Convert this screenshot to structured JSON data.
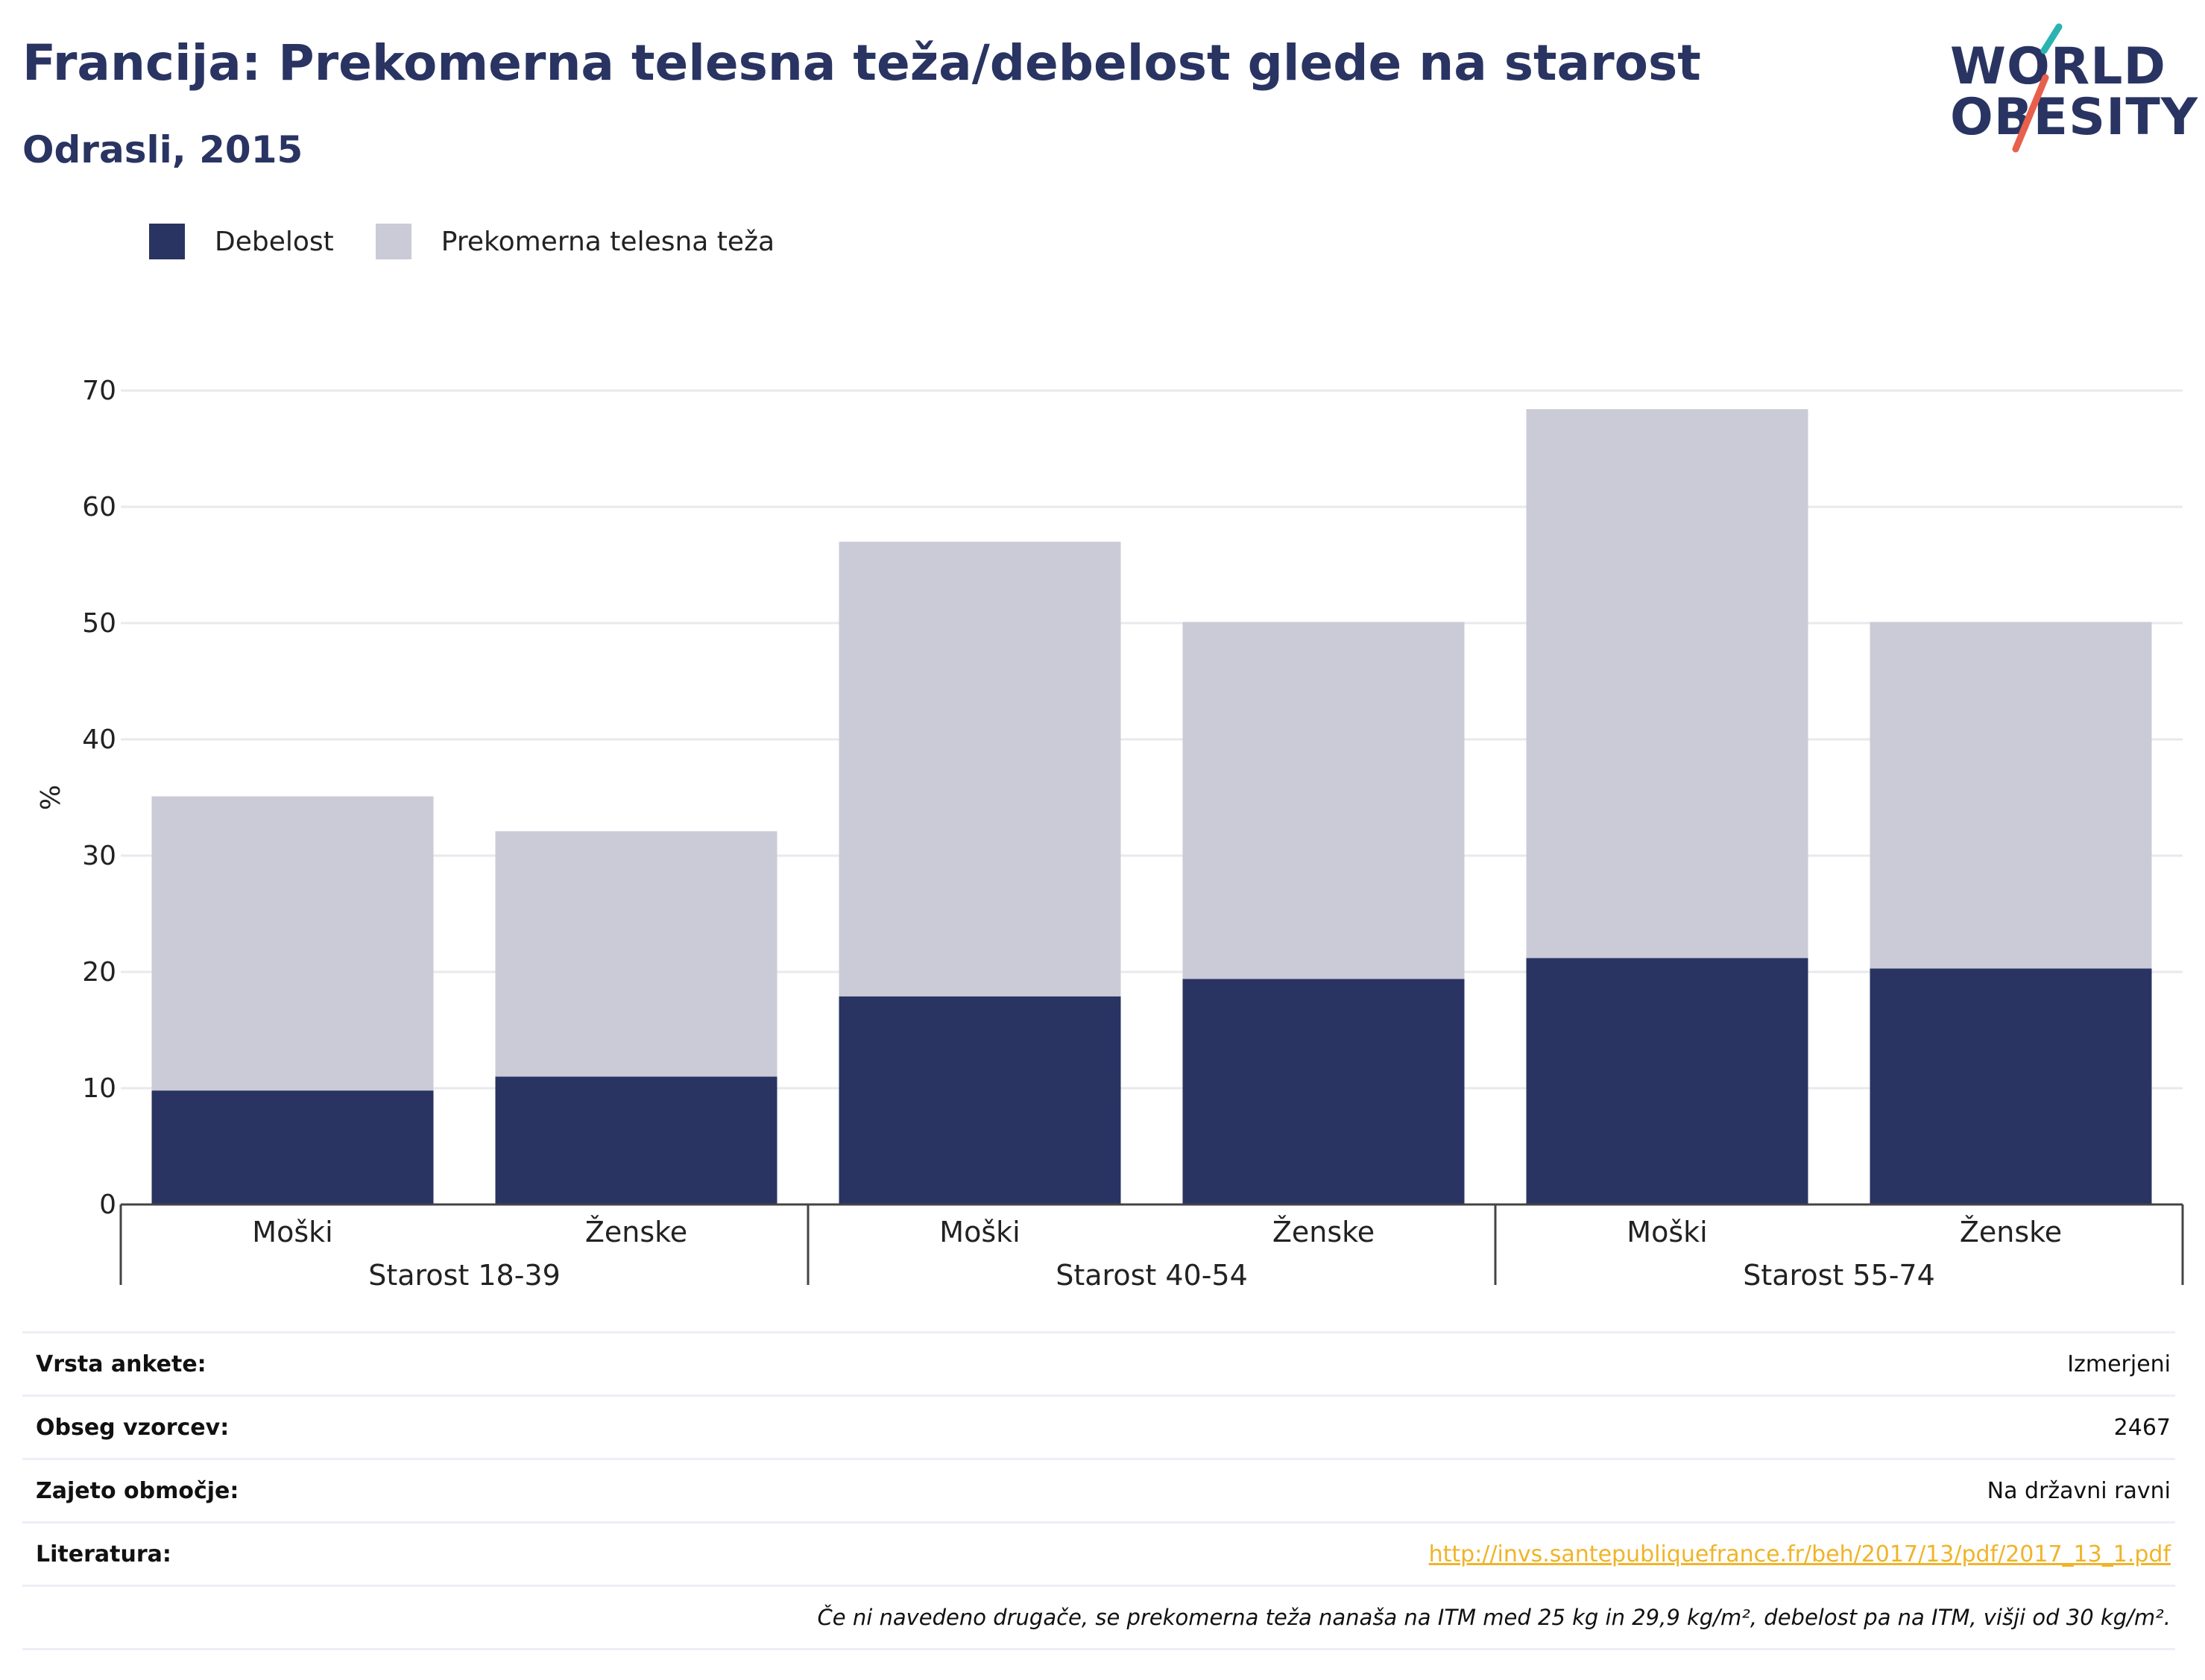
{
  "header": {
    "title": "Francija: Prekomerna telesna teža/debelost glede na starost",
    "subtitle": "Odrasli, 2015"
  },
  "logo": {
    "line1": "WORLD",
    "line2": "OBESITY",
    "accent_teal": "#2bb3b1",
    "accent_red": "#e8604c"
  },
  "colors": {
    "obesity": "#293462",
    "overweight": "#cacbd7",
    "grid": "#e8e9ee",
    "axis": "#444444"
  },
  "legend": {
    "items": [
      {
        "label": "Debelost",
        "color": "#293462"
      },
      {
        "label": "Prekomerna telesna teža",
        "color": "#cacbd7"
      }
    ]
  },
  "chart_data": {
    "type": "bar",
    "stacked": true,
    "ylabel": "%",
    "ylim": [
      0,
      70
    ],
    "yticks": [
      0,
      10,
      20,
      30,
      40,
      50,
      60,
      70
    ],
    "grid": true,
    "legend_position": "top-left",
    "groups": [
      "Starost 18-39",
      "Starost 40-54",
      "Starost 55-74"
    ],
    "categories": [
      "Moški",
      "Ženske",
      "Moški",
      "Ženske",
      "Moški",
      "Ženske"
    ],
    "series": [
      {
        "name": "Debelost",
        "values": [
          9.8,
          11.0,
          17.9,
          19.4,
          21.2,
          20.3
        ]
      },
      {
        "name": "Prekomerna telesna teža",
        "values": [
          25.3,
          21.1,
          39.1,
          30.7,
          47.2,
          29.8
        ]
      }
    ]
  },
  "info": {
    "rows": [
      {
        "key": "Vrsta ankete:",
        "value": "Izmerjeni"
      },
      {
        "key": "Obseg vzorcev:",
        "value": "2467"
      },
      {
        "key": "Zajeto območje:",
        "value": "Na državni ravni"
      },
      {
        "key": "Literatura:",
        "value": "http://invs.santepubliquefrance.fr/beh/2017/13/pdf/2017_13_1.pdf"
      }
    ],
    "note": "Če ni navedeno drugače, se prekomerna teža nanaša na ITM med 25 kg in 29,9 kg/m², debelost pa na ITM, višji od 30 kg/m²."
  }
}
